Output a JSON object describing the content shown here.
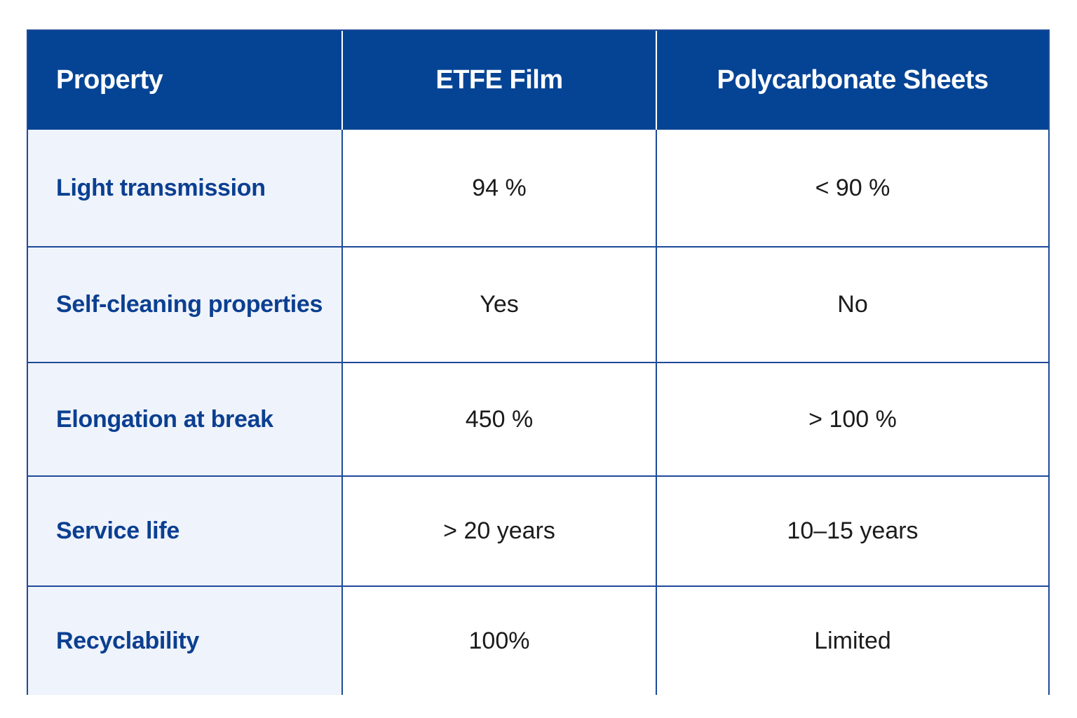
{
  "table": {
    "headers": [
      "Property",
      "ETFE Film",
      "Polycarbonate Sheets"
    ],
    "rows": [
      {
        "property": "Light transmission",
        "etfe": "94 %",
        "polycarbonate": "< 90 %"
      },
      {
        "property": "Self-cleaning properties",
        "etfe": "Yes",
        "polycarbonate": "No"
      },
      {
        "property": "Elongation at break",
        "etfe": "450 %",
        "polycarbonate": "> 100 %"
      },
      {
        "property": "Service life",
        "etfe": "> 20 years",
        "polycarbonate": "10–15 years"
      },
      {
        "property": "Recyclability",
        "etfe": "100%",
        "polycarbonate": "Limited"
      }
    ]
  },
  "colors": {
    "header_bg": "#054494",
    "header_text": "#ffffff",
    "property_bg": "#eff3fb",
    "property_text": "#0b3f91",
    "border": "#1e4a9a",
    "value_text": "#1b1b1b"
  }
}
